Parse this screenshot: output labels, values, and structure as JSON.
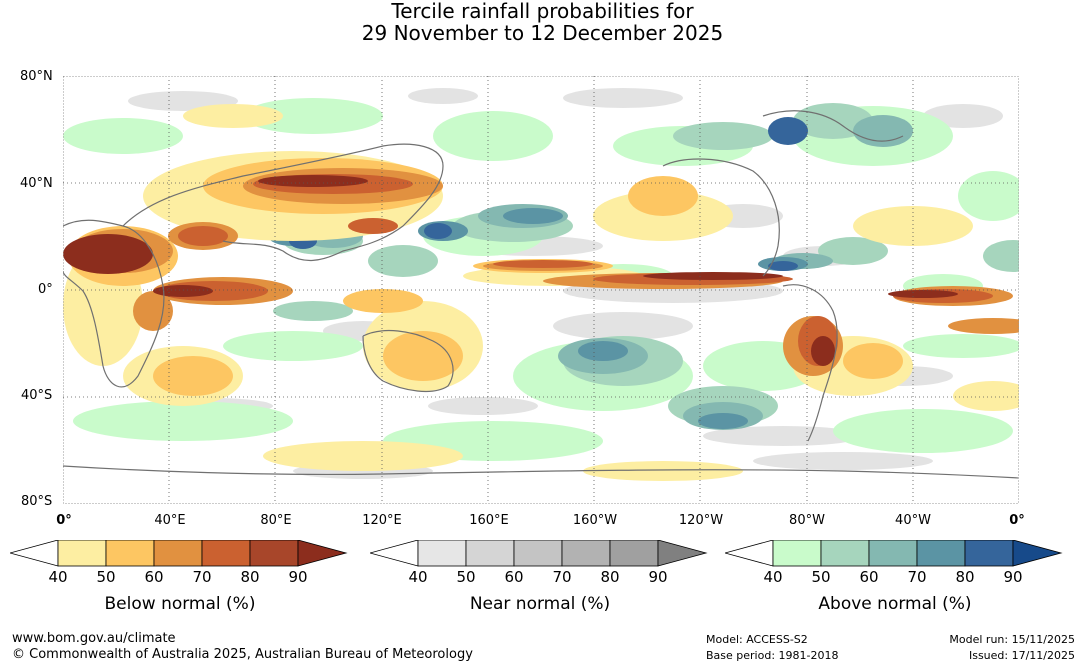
{
  "title": {
    "line1": "Tercile rainfall probabilities for",
    "line2": "29 November to 12 December 2025"
  },
  "axes": {
    "lat_labels": [
      "80°N",
      "40°N",
      "0°",
      "40°S",
      "80°S"
    ],
    "lon_labels": [
      "0°",
      "40°E",
      "80°E",
      "120°E",
      "160°E",
      "160°W",
      "120°W",
      "80°W",
      "40°W",
      "0°"
    ]
  },
  "legends": [
    {
      "title": "Below normal (%)",
      "ticks": [
        "40",
        "50",
        "60",
        "70",
        "80",
        "90"
      ],
      "colors": [
        "#ffffff",
        "#fdeea2",
        "#fdc662",
        "#e19140",
        "#cb6130",
        "#a8462a",
        "#8c2d1d"
      ]
    },
    {
      "title": "Near normal (%)",
      "ticks": [
        "40",
        "50",
        "60",
        "70",
        "80",
        "90"
      ],
      "colors": [
        "#ffffff",
        "#e6e6e6",
        "#d5d5d5",
        "#c4c4c4",
        "#b2b2b2",
        "#a0a0a0",
        "#808080"
      ]
    },
    {
      "title": "Above normal (%)",
      "ticks": [
        "40",
        "50",
        "60",
        "70",
        "80",
        "90"
      ],
      "colors": [
        "#ffffff",
        "#c9fbcb",
        "#a6d5bd",
        "#84b8b1",
        "#5b94a4",
        "#35659b",
        "#174a8a"
      ]
    }
  ],
  "footer": {
    "url": "www.bom.gov.au/climate",
    "copyright": "© Commonwealth of Australia 2025, Australian Bureau of Meteorology",
    "model": "Model: ACCESS-S2",
    "base_period": "Base period: 1981-2018",
    "model_run": "Model run: 15/11/2025",
    "issued": "Issued: 17/11/2025"
  }
}
